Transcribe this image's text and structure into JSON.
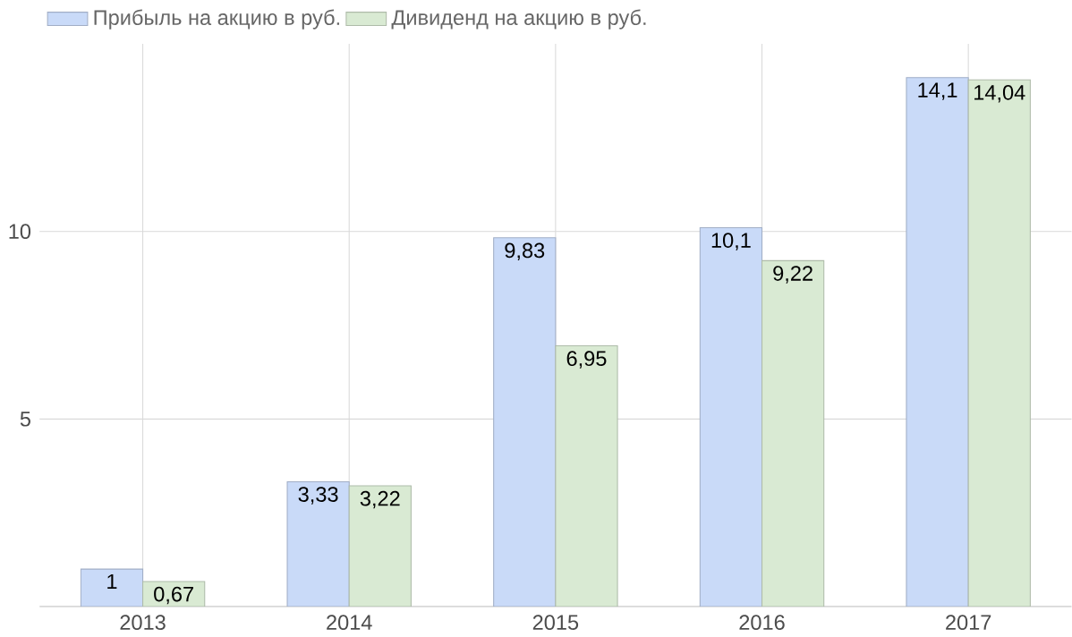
{
  "chart_data": {
    "type": "bar",
    "categories": [
      "2013",
      "2014",
      "2015",
      "2016",
      "2017"
    ],
    "series": [
      {
        "name": "Прибыль на акцию в руб.",
        "color": "#c9daf8",
        "values": [
          1,
          3.33,
          9.83,
          10.1,
          14.1
        ],
        "value_labels": [
          "1",
          "3,33",
          "9,83",
          "10,1",
          "14,1"
        ]
      },
      {
        "name": "Дивиденд на акцию в руб.",
        "color": "#d9ead3",
        "values": [
          0.67,
          3.22,
          6.95,
          9.22,
          14.04
        ],
        "value_labels": [
          "0,67",
          "3,22",
          "6,95",
          "9,22",
          "14,04"
        ]
      }
    ],
    "ylim": [
      0,
      15
    ],
    "yticks": [
      5,
      10
    ],
    "grid": true,
    "legend": "top left"
  }
}
